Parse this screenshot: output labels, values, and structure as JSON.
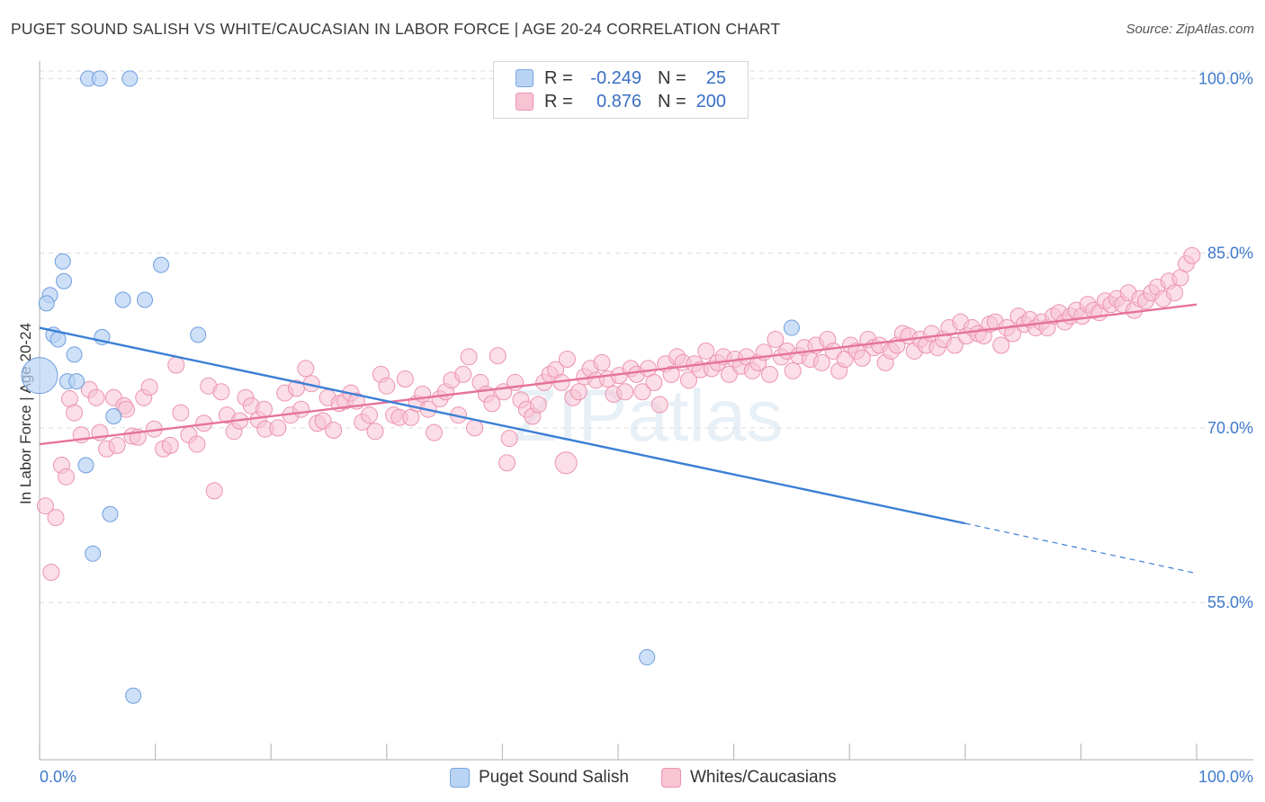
{
  "title": "PUGET SOUND SALISH VS WHITE/CAUCASIAN IN LABOR FORCE | AGE 20-24 CORRELATION CHART",
  "source": "Source: ZipAtlas.com",
  "watermark": "ZIPatlas",
  "legend_top": [
    {
      "name": "Puget Sound Salish",
      "r_label": "R =",
      "r_value": "-0.249",
      "n_label": "N =",
      "n_value": "25",
      "fill": "#a9c8f0",
      "stroke": "#6f9ee0"
    },
    {
      "name": "Whites/Caucasians",
      "r_label": "R =",
      "r_value": "0.876",
      "n_label": "N =",
      "n_value": "200",
      "fill": "#f7b9cc",
      "stroke": "#ea8aa8"
    }
  ],
  "legend_bottom": [
    {
      "label": "Puget Sound Salish"
    },
    {
      "label": "Whites/Caucasians"
    }
  ],
  "chart_data": {
    "type": "scatter",
    "title": "PUGET SOUND SALISH VS WHITE/CAUCASIAN IN LABOR FORCE | AGE 20-24 CORRELATION CHART",
    "xlabel": "",
    "ylabel": "In Labor Force | Age 20-24",
    "xlim": [
      0,
      100
    ],
    "ylim": [
      41.5,
      101.5
    ],
    "x_tick_labels": [
      {
        "value": 0,
        "label": "0.0%"
      },
      {
        "value": 100,
        "label": "100.0%"
      }
    ],
    "y_tick_labels": [
      {
        "value": 100,
        "label": "100.0%"
      },
      {
        "value": 85,
        "label": "85.0%"
      },
      {
        "value": 70,
        "label": "70.0%"
      },
      {
        "value": 55,
        "label": "55.0%"
      }
    ],
    "x_minor_ticks": [
      0,
      10,
      20,
      30,
      40,
      50,
      60,
      70,
      80,
      90,
      100
    ],
    "grid": "horizontal dashed",
    "colors": {
      "salish": "#3b7fd6",
      "white": "#e5739a",
      "salish_fill": "#b9d3f3",
      "white_fill": "#f8c3d3"
    },
    "series": [
      {
        "name": "Puget Sound Salish",
        "r": -0.249,
        "n": 25,
        "trend": {
          "x0": 0,
          "y0": 78.6,
          "x1": 80,
          "y1": 61.8,
          "dash_to_x": 100,
          "dash_to_y": 57.5
        },
        "points": [
          [
            4.2,
            100
          ],
          [
            5.2,
            100
          ],
          [
            7.8,
            100
          ],
          [
            0,
            74.5,
            "big"
          ],
          [
            2.0,
            84.3
          ],
          [
            2.1,
            82.6
          ],
          [
            0.9,
            81.4
          ],
          [
            0.6,
            80.7
          ],
          [
            7.2,
            81.0
          ],
          [
            9.1,
            81.0
          ],
          [
            10.5,
            84.0
          ],
          [
            1.2,
            78.0
          ],
          [
            1.6,
            77.6
          ],
          [
            5.4,
            77.8
          ],
          [
            13.7,
            78.0
          ],
          [
            3.0,
            76.3
          ],
          [
            2.4,
            74.0
          ],
          [
            3.2,
            74.0
          ],
          [
            6.4,
            71.0
          ],
          [
            4.0,
            66.8
          ],
          [
            6.1,
            62.6
          ],
          [
            4.6,
            59.2
          ],
          [
            8.1,
            47.0
          ],
          [
            52.5,
            50.3
          ],
          [
            65.0,
            78.6
          ]
        ]
      },
      {
        "name": "Whites/Caucasians",
        "r": 0.876,
        "n": 200,
        "trend": {
          "x0": 0,
          "y0": 68.6,
          "x1": 100,
          "y1": 80.6
        },
        "points": [
          [
            0.5,
            63.3
          ],
          [
            1.4,
            62.3
          ],
          [
            1.0,
            57.6
          ],
          [
            1.9,
            66.8
          ],
          [
            2.3,
            65.8
          ],
          [
            2.6,
            72.5
          ],
          [
            3.0,
            71.3
          ],
          [
            3.6,
            69.4
          ],
          [
            4.3,
            73.3
          ],
          [
            4.9,
            72.6
          ],
          [
            5.2,
            69.6
          ],
          [
            5.8,
            68.2
          ],
          [
            6.4,
            72.6
          ],
          [
            6.7,
            68.5
          ],
          [
            7.3,
            71.9
          ],
          [
            7.5,
            71.6
          ],
          [
            8.0,
            69.3
          ],
          [
            8.5,
            69.2
          ],
          [
            9.0,
            72.6
          ],
          [
            9.5,
            73.5
          ],
          [
            9.9,
            69.9
          ],
          [
            10.7,
            68.2
          ],
          [
            11.3,
            68.5
          ],
          [
            11.8,
            75.4
          ],
          [
            12.2,
            71.3
          ],
          [
            12.9,
            69.4
          ],
          [
            13.6,
            68.6
          ],
          [
            14.2,
            70.4
          ],
          [
            14.6,
            73.6
          ],
          [
            15.1,
            64.6
          ],
          [
            15.7,
            73.1
          ],
          [
            16.2,
            71.1
          ],
          [
            16.8,
            69.7
          ],
          [
            17.3,
            70.6
          ],
          [
            17.8,
            72.6
          ],
          [
            18.3,
            71.9
          ],
          [
            18.9,
            70.7
          ],
          [
            19.4,
            71.6
          ],
          [
            19.5,
            69.9
          ],
          [
            20.6,
            70.0
          ],
          [
            21.2,
            73.0
          ],
          [
            21.7,
            71.1
          ],
          [
            22.2,
            73.4
          ],
          [
            22.6,
            71.6
          ],
          [
            23.0,
            75.1
          ],
          [
            23.5,
            73.8
          ],
          [
            24.0,
            70.4
          ],
          [
            24.5,
            70.6
          ],
          [
            24.9,
            72.6
          ],
          [
            25.4,
            69.8
          ],
          [
            25.9,
            72.1
          ],
          [
            26.4,
            72.3
          ],
          [
            26.9,
            73.0
          ],
          [
            27.4,
            72.3
          ],
          [
            27.9,
            70.5
          ],
          [
            28.5,
            71.1
          ],
          [
            29.0,
            69.7
          ],
          [
            29.5,
            74.6
          ],
          [
            30.0,
            73.6
          ],
          [
            30.6,
            71.1
          ],
          [
            31.1,
            70.9
          ],
          [
            31.6,
            74.2
          ],
          [
            32.1,
            70.9
          ],
          [
            32.6,
            72.1
          ],
          [
            33.1,
            72.9
          ],
          [
            33.6,
            71.6
          ],
          [
            34.1,
            69.6
          ],
          [
            34.6,
            72.5
          ],
          [
            35.1,
            73.1
          ],
          [
            35.6,
            74.1
          ],
          [
            36.2,
            71.1
          ],
          [
            36.6,
            74.6
          ],
          [
            37.1,
            76.1
          ],
          [
            37.6,
            70.0
          ],
          [
            38.1,
            73.9
          ],
          [
            38.6,
            72.9
          ],
          [
            39.1,
            72.1
          ],
          [
            39.6,
            76.2
          ],
          [
            40.1,
            73.1
          ],
          [
            40.6,
            69.1
          ],
          [
            41.1,
            73.9
          ],
          [
            41.6,
            72.4
          ],
          [
            42.1,
            71.6
          ],
          [
            42.6,
            71.0
          ],
          [
            43.1,
            72.0
          ],
          [
            43.6,
            73.9
          ],
          [
            44.1,
            74.6
          ],
          [
            44.6,
            75.0
          ],
          [
            45.1,
            73.9
          ],
          [
            45.6,
            75.9
          ],
          [
            46.1,
            72.6
          ],
          [
            46.6,
            73.1
          ],
          [
            47.1,
            74.4
          ],
          [
            47.6,
            75.1
          ],
          [
            48.1,
            74.1
          ],
          [
            48.6,
            75.6
          ],
          [
            49.1,
            74.2
          ],
          [
            49.6,
            72.9
          ],
          [
            50.1,
            74.5
          ],
          [
            50.6,
            73.1
          ],
          [
            51.1,
            75.1
          ],
          [
            51.6,
            74.6
          ],
          [
            52.1,
            73.1
          ],
          [
            52.6,
            75.1
          ],
          [
            53.1,
            73.9
          ],
          [
            53.6,
            72.0
          ],
          [
            54.1,
            75.5
          ],
          [
            54.6,
            74.6
          ],
          [
            55.1,
            76.1
          ],
          [
            55.6,
            75.6
          ],
          [
            56.1,
            74.1
          ],
          [
            56.6,
            75.5
          ],
          [
            57.1,
            75.0
          ],
          [
            57.6,
            76.6
          ],
          [
            58.1,
            75.1
          ],
          [
            58.6,
            75.6
          ],
          [
            59.1,
            76.1
          ],
          [
            59.6,
            74.6
          ],
          [
            60.1,
            75.9
          ],
          [
            60.6,
            75.3
          ],
          [
            61.1,
            76.1
          ],
          [
            61.6,
            74.9
          ],
          [
            62.1,
            75.6
          ],
          [
            62.6,
            76.5
          ],
          [
            63.1,
            74.6
          ],
          [
            63.6,
            77.6
          ],
          [
            64.1,
            76.1
          ],
          [
            64.6,
            76.6
          ],
          [
            65.1,
            74.9
          ],
          [
            65.6,
            76.2
          ],
          [
            66.1,
            76.9
          ],
          [
            66.6,
            75.9
          ],
          [
            67.1,
            77.1
          ],
          [
            67.6,
            75.6
          ],
          [
            68.1,
            77.6
          ],
          [
            68.6,
            76.6
          ],
          [
            69.1,
            74.9
          ],
          [
            69.6,
            75.9
          ],
          [
            70.1,
            77.1
          ],
          [
            70.6,
            76.6
          ],
          [
            71.1,
            76.0
          ],
          [
            71.6,
            77.6
          ],
          [
            72.1,
            76.9
          ],
          [
            72.6,
            77.1
          ],
          [
            73.1,
            75.6
          ],
          [
            73.6,
            76.6
          ],
          [
            74.1,
            77.1
          ],
          [
            74.6,
            78.1
          ],
          [
            75.1,
            77.9
          ],
          [
            75.6,
            76.6
          ],
          [
            76.1,
            77.6
          ],
          [
            76.6,
            77.1
          ],
          [
            77.1,
            78.1
          ],
          [
            77.6,
            76.9
          ],
          [
            78.1,
            77.6
          ],
          [
            78.6,
            78.6
          ],
          [
            79.1,
            77.1
          ],
          [
            79.6,
            79.1
          ],
          [
            80.1,
            77.9
          ],
          [
            80.6,
            78.6
          ],
          [
            81.1,
            78.1
          ],
          [
            81.6,
            77.9
          ],
          [
            82.1,
            78.9
          ],
          [
            82.6,
            79.1
          ],
          [
            83.1,
            77.1
          ],
          [
            83.6,
            78.6
          ],
          [
            84.1,
            78.1
          ],
          [
            84.6,
            79.6
          ],
          [
            85.1,
            78.9
          ],
          [
            85.6,
            79.3
          ],
          [
            86.1,
            78.6
          ],
          [
            86.6,
            79.1
          ],
          [
            87.1,
            78.6
          ],
          [
            87.6,
            79.6
          ],
          [
            88.1,
            79.9
          ],
          [
            88.6,
            79.1
          ],
          [
            89.1,
            79.6
          ],
          [
            89.6,
            80.1
          ],
          [
            90.1,
            79.6
          ],
          [
            90.6,
            80.6
          ],
          [
            91.1,
            80.1
          ],
          [
            91.6,
            79.9
          ],
          [
            92.1,
            80.9
          ],
          [
            92.6,
            80.6
          ],
          [
            93.1,
            81.1
          ],
          [
            93.6,
            80.6
          ],
          [
            94.1,
            81.6
          ],
          [
            94.6,
            80.1
          ],
          [
            95.1,
            81.1
          ],
          [
            95.6,
            80.9
          ],
          [
            96.1,
            81.6
          ],
          [
            96.6,
            82.1
          ],
          [
            97.1,
            81.1
          ],
          [
            97.6,
            82.6
          ],
          [
            98.1,
            81.6
          ],
          [
            98.6,
            82.9
          ],
          [
            99.1,
            84.1
          ],
          [
            99.6,
            84.8
          ],
          [
            45.5,
            67.0,
            "big"
          ],
          [
            40.4,
            67.0
          ]
        ]
      }
    ]
  }
}
